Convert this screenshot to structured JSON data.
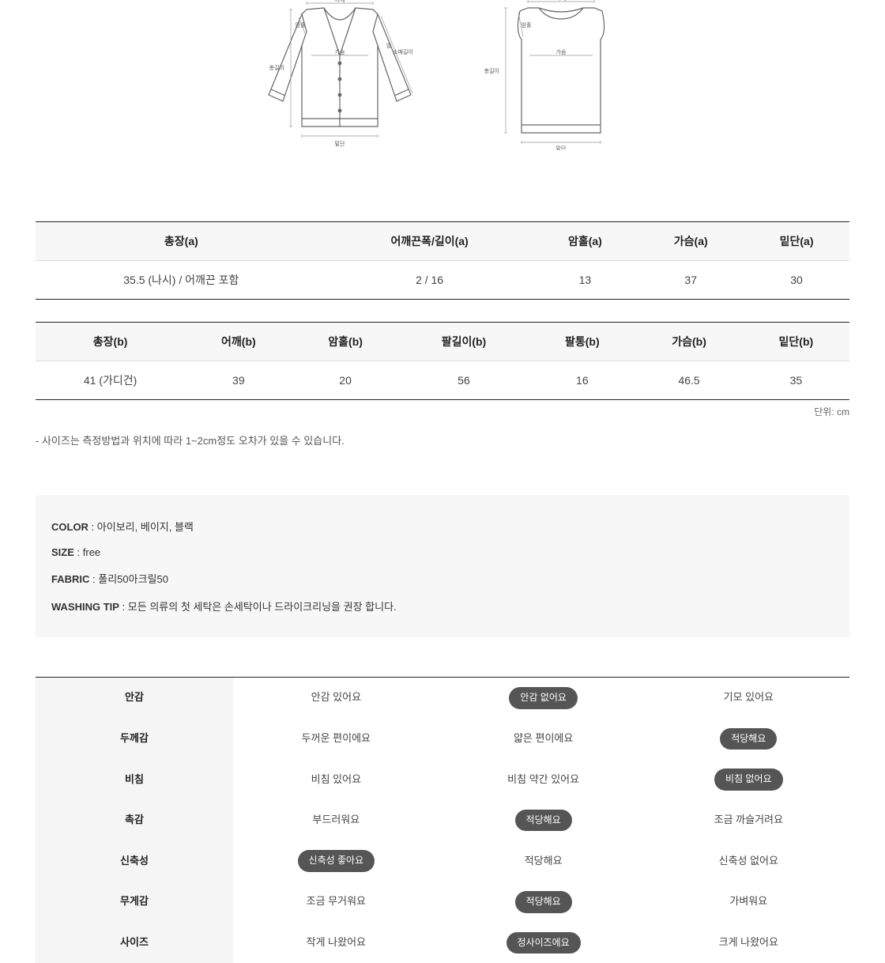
{
  "diagram": {
    "cardigan_labels": {
      "shoulder": "어깨",
      "armhole": "암홀",
      "chest": "가슴",
      "total_length": "총길이",
      "sleeve_length": "소매길이",
      "hem": "밑단",
      "arm": "암"
    },
    "vest_labels": {
      "shoulder": "어깨",
      "armhole": "암홀",
      "chest": "가슴",
      "total_length": "총길이",
      "hem": "밑단"
    },
    "line_color": "#666666",
    "fill_color": "#ffffff"
  },
  "table_a": {
    "columns": [
      "총장(a)",
      "어깨끈폭/길이(a)",
      "암홀(a)",
      "가슴(a)",
      "밑단(a)"
    ],
    "rows": [
      [
        "35.5 (나시) / 어깨끈 포함",
        "2 / 16",
        "13",
        "37",
        "30"
      ]
    ]
  },
  "table_b": {
    "columns": [
      "총장(b)",
      "어깨(b)",
      "암홀(b)",
      "팔길이(b)",
      "팔통(b)",
      "가슴(b)",
      "밑단(b)"
    ],
    "rows": [
      [
        "41 (가디건)",
        "39",
        "20",
        "56",
        "16",
        "46.5",
        "35"
      ]
    ]
  },
  "unit_note": "단위: cm",
  "size_disclaimer": "- 사이즈는 측정방법과 위치에 따라 1~2cm정도 오차가 있을 수 있습니다.",
  "info": {
    "color": {
      "label": "COLOR",
      "value": "아이보리, 베이지, 블랙"
    },
    "size": {
      "label": "SIZE",
      "value": "free"
    },
    "fabric": {
      "label": "FABRIC",
      "value": "폴리50아크릴50"
    },
    "washing": {
      "label": "WASHING TIP",
      "value": "모든 의류의 첫 세탁은 손세탁이나 드라이크리닝을 권장 합니다."
    }
  },
  "attributes": [
    {
      "label": "안감",
      "options": [
        "안감 있어요",
        "안감 없어요",
        "기모 있어요"
      ],
      "selected": 1
    },
    {
      "label": "두께감",
      "options": [
        "두꺼운 편이에요",
        "얇은 편이에요",
        "적당해요"
      ],
      "selected": 2
    },
    {
      "label": "비침",
      "options": [
        "비침 있어요",
        "비침 약간 있어요",
        "비침 없어요"
      ],
      "selected": 2
    },
    {
      "label": "촉감",
      "options": [
        "부드러워요",
        "적당해요",
        "조금 까슬거려요"
      ],
      "selected": 1
    },
    {
      "label": "신축성",
      "options": [
        "신축성 좋아요",
        "적당해요",
        "신축성 없어요"
      ],
      "selected": 0
    },
    {
      "label": "무게감",
      "options": [
        "조금 무거워요",
        "적당해요",
        "가벼워요"
      ],
      "selected": 1
    },
    {
      "label": "사이즈",
      "options": [
        "작게 나왔어요",
        "정사이즈에요",
        "크게 나왔어요"
      ],
      "selected": 1
    }
  ],
  "colors": {
    "pill_bg": "#555555",
    "pill_fg": "#ffffff",
    "header_bg": "#f7f7f7",
    "border_dark": "#222222",
    "border_light": "#dddddd",
    "text": "#333333"
  }
}
